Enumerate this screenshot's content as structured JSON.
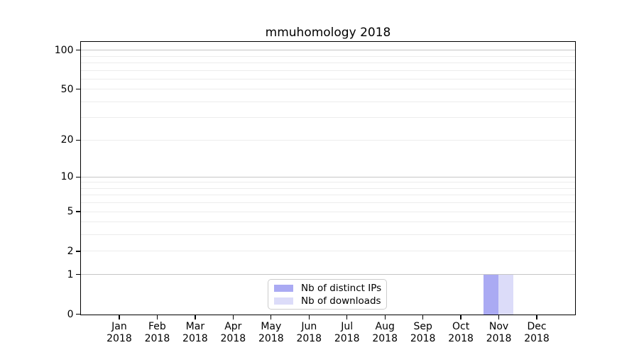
{
  "chart_data": {
    "type": "bar",
    "title": "mmuhomology 2018",
    "x_categories": [
      {
        "month": "Jan",
        "year": "2018"
      },
      {
        "month": "Feb",
        "year": "2018"
      },
      {
        "month": "Mar",
        "year": "2018"
      },
      {
        "month": "Apr",
        "year": "2018"
      },
      {
        "month": "May",
        "year": "2018"
      },
      {
        "month": "Jun",
        "year": "2018"
      },
      {
        "month": "Jul",
        "year": "2018"
      },
      {
        "month": "Aug",
        "year": "2018"
      },
      {
        "month": "Sep",
        "year": "2018"
      },
      {
        "month": "Oct",
        "year": "2018"
      },
      {
        "month": "Nov",
        "year": "2018"
      },
      {
        "month": "Dec",
        "year": "2018"
      }
    ],
    "series": [
      {
        "name": "Nb of distinct IPs",
        "color": "#aaaaf3",
        "values": [
          0,
          0,
          0,
          0,
          0,
          0,
          0,
          0,
          0,
          0,
          1,
          0
        ]
      },
      {
        "name": "Nb of downloads",
        "color": "#dcdcf9",
        "values": [
          0,
          0,
          0,
          0,
          0,
          0,
          0,
          0,
          0,
          0,
          1,
          0
        ]
      }
    ],
    "y_axis": {
      "scale": "log1p",
      "tick_values": [
        0,
        1,
        2,
        5,
        10,
        20,
        50,
        100
      ],
      "tick_labels": [
        "0",
        "1",
        "2",
        "5",
        "10",
        "20",
        "50",
        "100"
      ],
      "major_gridlines": [
        1,
        10,
        100
      ],
      "minor_gridlines": [
        2,
        3,
        4,
        5,
        6,
        7,
        8,
        9,
        20,
        30,
        40,
        50,
        60,
        70,
        80,
        90
      ],
      "ylim": [
        0,
        115
      ]
    },
    "legend": {
      "position": "lower center"
    },
    "grid": true
  },
  "colors": {
    "major_grid": "#c6c6c6",
    "minor_grid": "#ececec",
    "spine": "#000000",
    "legend_border": "#cccccc",
    "background": "#ffffff"
  }
}
